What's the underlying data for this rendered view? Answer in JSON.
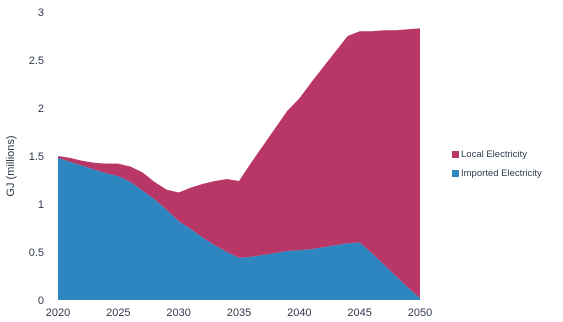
{
  "chart_data": {
    "type": "area",
    "stacked": true,
    "title": "",
    "xlabel": "",
    "ylabel": "GJ (millions)",
    "x": [
      2020,
      2021,
      2022,
      2023,
      2024,
      2025,
      2026,
      2027,
      2028,
      2029,
      2030,
      2031,
      2032,
      2033,
      2034,
      2035,
      2036,
      2037,
      2038,
      2039,
      2040,
      2041,
      2042,
      2043,
      2044,
      2045,
      2046,
      2047,
      2048,
      2049,
      2050
    ],
    "series": [
      {
        "name": "Imported Electricity",
        "color": "#2e86c1",
        "values": [
          1.48,
          1.44,
          1.4,
          1.36,
          1.32,
          1.29,
          1.23,
          1.14,
          1.05,
          0.94,
          0.82,
          0.74,
          0.65,
          0.57,
          0.5,
          0.44,
          0.45,
          0.47,
          0.49,
          0.51,
          0.52,
          0.53,
          0.55,
          0.57,
          0.59,
          0.6,
          0.49,
          0.37,
          0.25,
          0.13,
          0.02
        ]
      },
      {
        "name": "Local Electricity",
        "color": "#b83766",
        "values": [
          0.02,
          0.04,
          0.05,
          0.07,
          0.1,
          0.13,
          0.16,
          0.19,
          0.18,
          0.21,
          0.3,
          0.43,
          0.56,
          0.67,
          0.76,
          0.8,
          0.98,
          1.14,
          1.3,
          1.46,
          1.58,
          1.74,
          1.88,
          2.02,
          2.16,
          2.2,
          2.31,
          2.44,
          2.56,
          2.69,
          2.81
        ]
      }
    ],
    "x_ticks": [
      "2020",
      "2025",
      "2030",
      "2035",
      "2040",
      "2045",
      "2050"
    ],
    "y_ticks": [
      "0",
      "0.5",
      "1",
      "1.5",
      "2",
      "2.5",
      "3"
    ],
    "ylim": [
      0,
      3
    ],
    "xlim": [
      2020,
      2050
    ],
    "grid": false,
    "legend": {
      "position": "right",
      "entries": [
        "Local Electricity",
        "Imported Electricity"
      ]
    }
  }
}
